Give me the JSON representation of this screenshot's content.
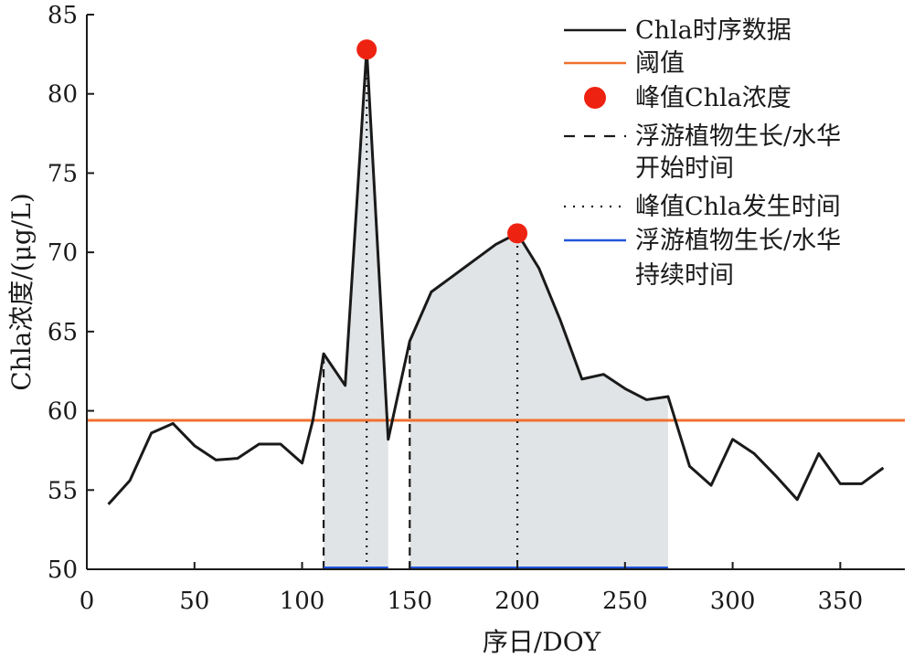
{
  "chart_data": {
    "type": "line",
    "xlabel": "序日/DOY",
    "ylabel": "Chla浓度/(μg/L)",
    "xlim": [
      0,
      380
    ],
    "ylim": [
      50,
      85
    ],
    "xticks": [
      0,
      50,
      100,
      150,
      200,
      250,
      300,
      350
    ],
    "yticks": [
      50,
      55,
      60,
      65,
      70,
      75,
      80,
      85
    ],
    "grid": false,
    "legend_position": "top-right",
    "series": [
      {
        "name": "Chla时序数据",
        "color": "#1a1a1a",
        "x": [
          10,
          20,
          30,
          40,
          50,
          60,
          70,
          80,
          90,
          100,
          105,
          110,
          120,
          130,
          140,
          150,
          160,
          170,
          180,
          190,
          200,
          210,
          220,
          230,
          240,
          250,
          260,
          270,
          280,
          290,
          300,
          310,
          320,
          330,
          340,
          350,
          360,
          370
        ],
        "y": [
          54.1,
          55.6,
          58.6,
          59.2,
          57.8,
          56.9,
          57.0,
          57.9,
          57.9,
          56.7,
          59.4,
          63.6,
          61.6,
          82.8,
          58.2,
          64.4,
          67.5,
          68.5,
          69.5,
          70.5,
          71.2,
          69.0,
          65.7,
          62.0,
          62.3,
          61.4,
          60.7,
          60.9,
          56.5,
          55.3,
          58.2,
          57.3,
          55.9,
          54.4,
          57.3,
          55.4,
          55.4,
          56.4
        ]
      }
    ],
    "threshold": {
      "name": "阈值",
      "value": 59.4,
      "color": "#f07030"
    },
    "peaks": {
      "name": "峰值Chla浓度",
      "color": "#ee2211",
      "points": [
        {
          "x": 130,
          "y": 82.8
        },
        {
          "x": 200,
          "y": 71.2
        }
      ]
    },
    "bloom_periods": [
      {
        "start": 110,
        "peak": 130,
        "end": 140
      },
      {
        "start": 150,
        "peak": 200,
        "end": 270
      }
    ],
    "legend": [
      {
        "key": "series",
        "label": "Chla时序数据"
      },
      {
        "key": "threshold",
        "label": "阈值"
      },
      {
        "key": "peak",
        "label": "峰值Chla浓度"
      },
      {
        "key": "start",
        "label_lines": [
          "浮游植物生长/水华",
          "开始时间"
        ]
      },
      {
        "key": "peaktime",
        "label": "峰值Chla发生时间"
      },
      {
        "key": "duration",
        "label_lines": [
          "浮游植物生长/水华",
          "持续时间"
        ],
        "color": "#2255dd"
      }
    ],
    "fill_color": "#e1e4e6"
  }
}
